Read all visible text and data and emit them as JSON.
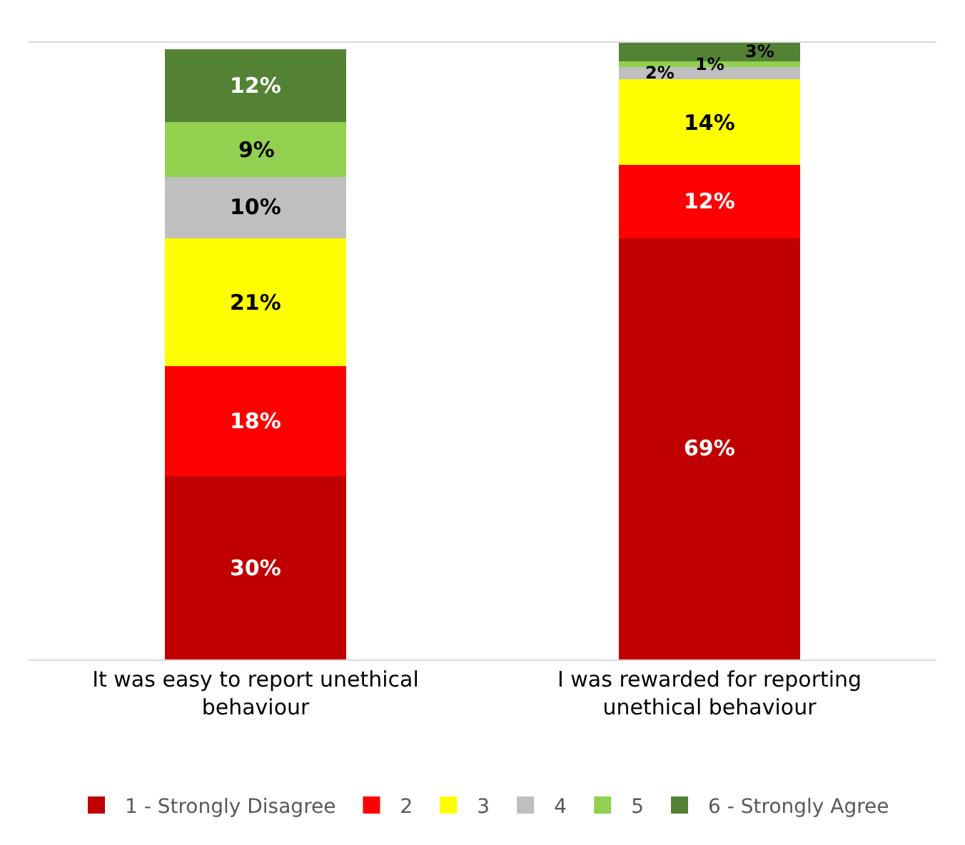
{
  "chart_data": {
    "type": "bar",
    "stacked": true,
    "categories": [
      "It was easy to report unethical behaviour",
      "I was rewarded for reporting unethical behaviour"
    ],
    "series": [
      {
        "name": "1 - Strongly Disagree",
        "color": "#c00000",
        "values": [
          30,
          69
        ],
        "value_labels": [
          "30%",
          "69%"
        ]
      },
      {
        "name": "2",
        "color": "#ff0000",
        "values": [
          18,
          12
        ],
        "value_labels": [
          "18%",
          "12%"
        ]
      },
      {
        "name": "3",
        "color": "#ffff00",
        "values": [
          21,
          14
        ],
        "value_labels": [
          "21%",
          "14%"
        ]
      },
      {
        "name": "4",
        "color": "#bfbfbf",
        "values": [
          10,
          2
        ],
        "value_labels": [
          "10%",
          "2%"
        ]
      },
      {
        "name": "5",
        "color": "#92d050",
        "values": [
          9,
          1
        ],
        "value_labels": [
          "9%",
          "1%"
        ]
      },
      {
        "name": "6 - Strongly Agree",
        "color": "#548235",
        "values": [
          12,
          3
        ],
        "value_labels": [
          "12%",
          "3%"
        ]
      }
    ],
    "tick_labels": "x",
    "legend": "bottom"
  }
}
